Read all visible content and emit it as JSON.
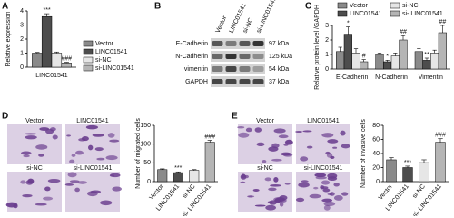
{
  "panel_labels": [
    "A",
    "B",
    "C",
    "D",
    "E"
  ],
  "chart_data": [
    {
      "type": "bar",
      "ylabel": "Relative expression",
      "categories": [
        "LINC01541"
      ],
      "series": [
        {
          "name": "Vector",
          "color": "#8a8a8a",
          "values": [
            1.0
          ],
          "errors": [
            0.05
          ],
          "annotations": [
            null
          ]
        },
        {
          "name": "LINC01541",
          "color": "#4d4d4d",
          "values": [
            3.6
          ],
          "errors": [
            0.2
          ],
          "annotations": [
            "***"
          ]
        },
        {
          "name": "si-NC",
          "color": "#e6e6e6",
          "values": [
            1.0
          ],
          "errors": [
            0.08
          ],
          "annotations": [
            null
          ]
        },
        {
          "name": "si-LINC01541",
          "color": "#b5b5b5",
          "values": [
            0.3
          ],
          "errors": [
            0.05
          ],
          "annotations": [
            "###"
          ]
        }
      ],
      "ylim": [
        0,
        4
      ],
      "yticks": [
        0,
        1,
        2,
        3,
        4
      ]
    },
    {
      "type": "bar",
      "ylabel": "Relative protein level /GAPDH",
      "categories": [
        "E-Cadherin",
        "N-Cadherin",
        "Vimentin"
      ],
      "series": [
        {
          "name": "Vector",
          "color": "#8a8a8a",
          "values": [
            1.2,
            1.0,
            1.2
          ],
          "errors": [
            0.3,
            0.1,
            0.2
          ],
          "annotations": [
            null,
            null,
            null
          ]
        },
        {
          "name": "LINC01541",
          "color": "#4d4d4d",
          "values": [
            2.4,
            0.5,
            0.6
          ],
          "errors": [
            0.5,
            0.1,
            0.15
          ],
          "annotations": [
            "*",
            "*",
            "**"
          ]
        },
        {
          "name": "si-NC",
          "color": "#e6e6e6",
          "values": [
            1.1,
            0.9,
            1.1
          ],
          "errors": [
            0.3,
            0.2,
            0.2
          ],
          "annotations": [
            null,
            null,
            null
          ]
        },
        {
          "name": "si- LINC01541",
          "color": "#b5b5b5",
          "values": [
            0.5,
            2.0,
            2.5
          ],
          "errors": [
            0.15,
            0.3,
            0.5
          ],
          "annotations": [
            "#",
            "##",
            "##"
          ]
        }
      ],
      "ylim": [
        0,
        3
      ],
      "yticks": [
        0,
        1,
        2,
        3
      ]
    },
    {
      "type": "bar",
      "ylabel": "Number of migrated cells",
      "categories": [
        "Vector",
        "LINC01541",
        "si-NC",
        "si- LINC01541"
      ],
      "values": [
        32,
        24,
        30,
        105
      ],
      "errors": [
        2,
        2,
        2,
        5
      ],
      "annotations": [
        null,
        "***",
        null,
        "###"
      ],
      "colors": [
        "#8a8a8a",
        "#4d4d4d",
        "#e6e6e6",
        "#b5b5b5"
      ],
      "ylim": [
        0,
        150
      ],
      "yticks": [
        0,
        50,
        100,
        150
      ]
    },
    {
      "type": "bar",
      "ylabel": "Number of invasive cells",
      "categories": [
        "Vector",
        "LINC01541",
        "si-NC",
        "si- LINC01541"
      ],
      "values": [
        31,
        20,
        27,
        56
      ],
      "errors": [
        3,
        2,
        4,
        5
      ],
      "annotations": [
        null,
        "***",
        null,
        "###"
      ],
      "colors": [
        "#8a8a8a",
        "#4d4d4d",
        "#e6e6e6",
        "#b5b5b5"
      ],
      "ylim": [
        0,
        80
      ],
      "yticks": [
        0,
        20,
        40,
        60,
        80
      ]
    }
  ],
  "blot": {
    "lanes": [
      "Vector",
      "LINC01541",
      "si-NC",
      "si-LINC01541"
    ],
    "rows": [
      {
        "protein": "E-Cadherin",
        "size": "97 kDa"
      },
      {
        "protein": "N-Cadherin",
        "size": "125 kDa"
      },
      {
        "protein": "vimentin",
        "size": "54 kDa"
      },
      {
        "protein": "GAPDH",
        "size": "37 kDa"
      }
    ]
  },
  "micrographs": {
    "migration": [
      "Vector",
      "LINC01541",
      "si-NC",
      "si-LINC01541"
    ],
    "invasion": [
      "Vector",
      "LINC01541",
      "si-NC",
      "si-LINC01541"
    ]
  }
}
